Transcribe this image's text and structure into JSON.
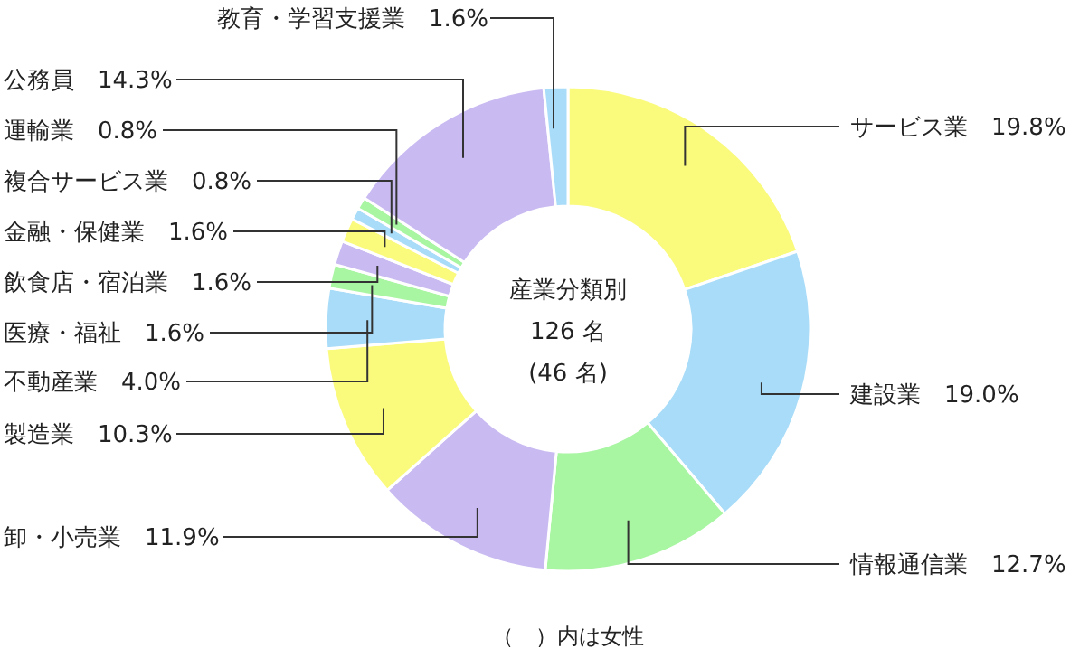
{
  "chart_data": {
    "type": "donut",
    "categories": [
      "サービス業",
      "建設業",
      "情報通信業",
      "卸・小売業",
      "製造業",
      "不動産業",
      "医療・福祉",
      "飲食店・宿泊業",
      "金融・保健業",
      "複合サービス業",
      "運輸業",
      "公務員",
      "教育・学習支援業"
    ],
    "values": [
      19.8,
      19.0,
      12.7,
      11.9,
      10.3,
      4.0,
      1.6,
      1.6,
      1.6,
      0.8,
      0.8,
      14.3,
      1.6
    ],
    "value_labels": [
      "19.8%",
      "19.0%",
      "12.7%",
      "11.9%",
      "10.3%",
      "4.0%",
      "1.6%",
      "1.6%",
      "1.6%",
      "0.8%",
      "0.8%",
      "14.3%",
      "1.6%"
    ],
    "colors": [
      "#fafa7d",
      "#a8dcf8",
      "#a8f5a2",
      "#c9baf2",
      "#fafa7d",
      "#a8dcf8",
      "#a8f5a2",
      "#c9baf2",
      "#fafa7d",
      "#a8dcf8",
      "#a8f5a2",
      "#c9baf2",
      "#a8dcf8"
    ],
    "annotations": [
      "産業分類別",
      "126 名",
      "(46 名)",
      "（　）内は女性"
    ]
  }
}
